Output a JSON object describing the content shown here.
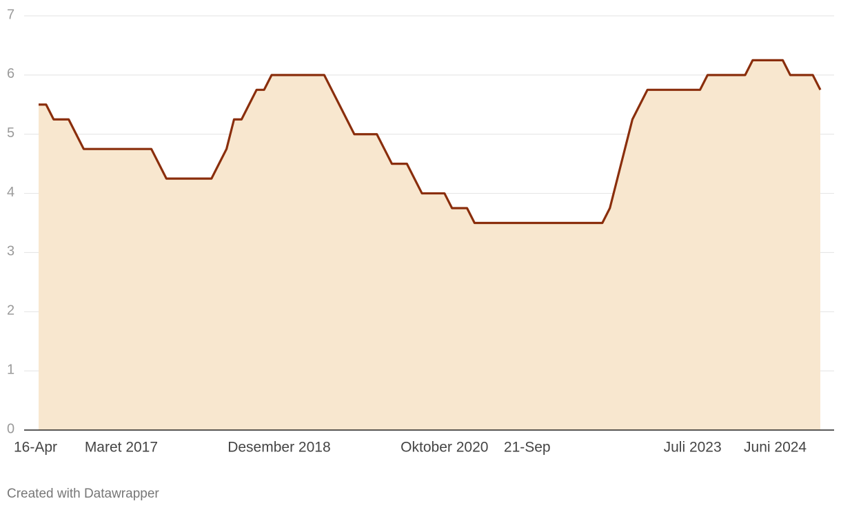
{
  "chart_data": {
    "type": "area",
    "categories": [
      "16-Apr",
      null,
      null,
      null,
      null,
      null,
      null,
      null,
      null,
      null,
      null,
      "Maret 2017",
      null,
      null,
      null,
      null,
      null,
      null,
      null,
      null,
      null,
      null,
      null,
      null,
      null,
      null,
      null,
      null,
      null,
      null,
      null,
      null,
      "Desember 2018",
      null,
      null,
      null,
      null,
      null,
      null,
      null,
      null,
      null,
      null,
      null,
      null,
      null,
      null,
      null,
      null,
      null,
      null,
      null,
      null,
      null,
      "Oktober 2020",
      null,
      null,
      null,
      null,
      null,
      null,
      null,
      null,
      null,
      null,
      "21-Sep",
      null,
      null,
      null,
      null,
      null,
      null,
      null,
      null,
      null,
      null,
      null,
      null,
      null,
      null,
      null,
      null,
      null,
      null,
      null,
      null,
      null,
      "Juli 2023",
      null,
      null,
      null,
      null,
      null,
      null,
      null,
      null,
      null,
      null,
      "Juni 2024",
      null,
      null,
      null,
      null,
      null,
      null
    ],
    "values": [
      5.5,
      5.5,
      5.25,
      5.25,
      5.25,
      5,
      4.75,
      4.75,
      4.75,
      4.75,
      4.75,
      4.75,
      4.75,
      4.75,
      4.75,
      4.75,
      4.5,
      4.25,
      4.25,
      4.25,
      4.25,
      4.25,
      4.25,
      4.25,
      4.5,
      4.75,
      5.25,
      5.25,
      5.5,
      5.75,
      5.75,
      6,
      6,
      6,
      6,
      6,
      6,
      6,
      6,
      5.75,
      5.5,
      5.25,
      5,
      5,
      5,
      5,
      4.75,
      4.5,
      4.5,
      4.5,
      4.25,
      4,
      4,
      4,
      4,
      3.75,
      3.75,
      3.75,
      3.5,
      3.5,
      3.5,
      3.5,
      3.5,
      3.5,
      3.5,
      3.5,
      3.5,
      3.5,
      3.5,
      3.5,
      3.5,
      3.5,
      3.5,
      3.5,
      3.5,
      3.5,
      3.75,
      4.25,
      4.75,
      5.25,
      5.5,
      5.75,
      5.75,
      5.75,
      5.75,
      5.75,
      5.75,
      5.75,
      5.75,
      6,
      6,
      6,
      6,
      6,
      6,
      6.25,
      6.25,
      6.25,
      6.25,
      6.25,
      6,
      6,
      6,
      6,
      5.75
    ],
    "color": "#8a2e0c",
    "fill": "#f8e7cf",
    "ylim": [
      0,
      7
    ],
    "yticks": [
      0,
      1,
      2,
      3,
      4,
      5,
      6,
      7
    ],
    "grid": true
  },
  "footer": "Created with Datawrapper"
}
